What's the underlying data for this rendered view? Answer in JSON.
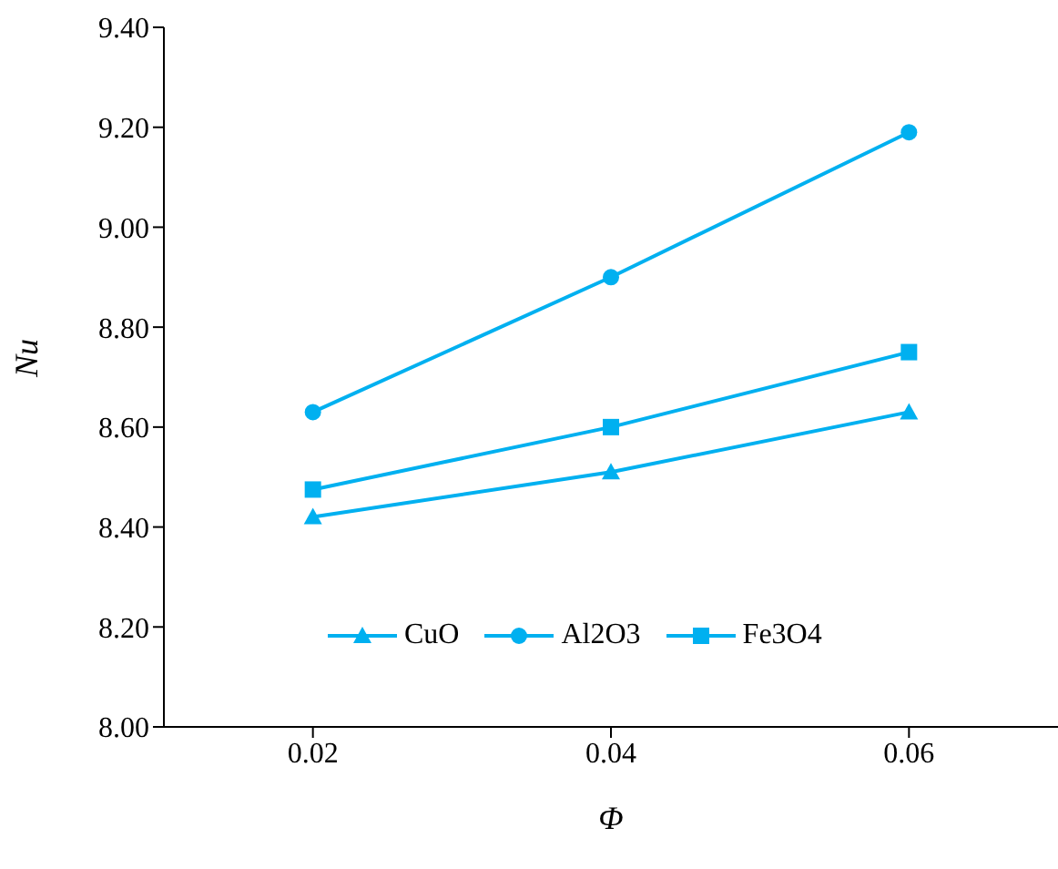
{
  "chart_data": {
    "type": "line",
    "xlabel": "Φ",
    "ylabel": "Nu",
    "x": [
      0.02,
      0.04,
      0.06
    ],
    "xlim": [
      0.01,
      0.07
    ],
    "xticks": [
      0.02,
      0.04,
      0.06
    ],
    "ylim": [
      8,
      9.4
    ],
    "yticks": [
      {
        "value": 8,
        "label": "8.00"
      },
      {
        "value": 8.2,
        "label": "8.20"
      },
      {
        "value": 8.4,
        "label": "8.40"
      },
      {
        "value": 8.6,
        "label": "8.60"
      },
      {
        "value": 8.8,
        "label": "8.80"
      },
      {
        "value": 9,
        "label": "9.00"
      },
      {
        "value": 9.2,
        "label": "9.20"
      },
      {
        "value": 9.4,
        "label": "9.40"
      }
    ],
    "grid": false,
    "legend": "bottom",
    "line_style": "solid",
    "series": [
      {
        "name": "CuO",
        "color": "#00b0f0",
        "marker": "triangle",
        "values": [
          8.42,
          8.51,
          8.63
        ]
      },
      {
        "name": "Al2O3",
        "color": "#00b0f0",
        "marker": "circle",
        "values": [
          8.63,
          8.9,
          9.19
        ]
      },
      {
        "name": "Fe3O4",
        "color": "#00b0f0",
        "marker": "square",
        "values": [
          8.475,
          8.6,
          8.75
        ]
      }
    ]
  }
}
